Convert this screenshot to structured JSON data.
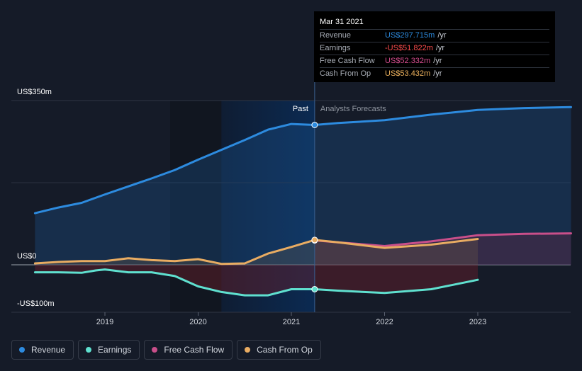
{
  "tooltip": {
    "date": "Mar 31 2021",
    "rows": [
      {
        "label": "Revenue",
        "value": "US$297.715m",
        "unit": "/yr",
        "color": "#2d8bdf"
      },
      {
        "label": "Earnings",
        "value": "-US$51.822m",
        "unit": "/yr",
        "color": "#ff4d4d"
      },
      {
        "label": "Free Cash Flow",
        "value": "US$52.332m",
        "unit": "/yr",
        "color": "#d64d8f"
      },
      {
        "label": "Cash From Op",
        "value": "US$53.432m",
        "unit": "/yr",
        "color": "#f0b45e"
      }
    ]
  },
  "legend": [
    {
      "label": "Revenue",
      "color": "#2d8bdf"
    },
    {
      "label": "Earnings",
      "color": "#5fe0cf"
    },
    {
      "label": "Free Cash Flow",
      "color": "#c94f8a"
    },
    {
      "label": "Cash From Op",
      "color": "#e9ac62"
    }
  ],
  "chart_data": {
    "type": "line",
    "ylabels": [
      "US$350m",
      "US$0",
      "-US$100m"
    ],
    "ylim": [
      -100,
      350
    ],
    "xlim": [
      2018.25,
      2024.0
    ],
    "xticks": [
      {
        "value": 2019,
        "label": "2019"
      },
      {
        "value": 2020,
        "label": "2020"
      },
      {
        "value": 2021,
        "label": "2021"
      },
      {
        "value": 2022,
        "label": "2022"
      },
      {
        "value": 2023,
        "label": "2023"
      }
    ],
    "past_label": "Past",
    "forecast_label": "Analysts Forecasts",
    "divider_x": 2021.25,
    "highlight_start": 2020.25,
    "series": [
      {
        "name": "Revenue",
        "color": "#2d8bdf",
        "x": [
          2018.25,
          2018.5,
          2018.75,
          2019.0,
          2019.25,
          2019.5,
          2019.75,
          2020.0,
          2020.25,
          2020.5,
          2020.75,
          2021.0,
          2021.25,
          2021.5,
          2022.0,
          2022.5,
          2023.0,
          2023.5,
          2024.0
        ],
        "y": [
          110,
          122,
          132,
          150,
          167,
          184,
          202,
          224,
          245,
          266,
          288,
          300,
          298,
          302,
          308,
          320,
          330,
          334,
          336
        ]
      },
      {
        "name": "Earnings",
        "color": "#5fe0cf",
        "x": [
          2018.25,
          2018.5,
          2018.75,
          2018.9,
          2019.0,
          2019.25,
          2019.5,
          2019.75,
          2020.0,
          2020.25,
          2020.5,
          2020.75,
          2021.0,
          2021.25,
          2021.5,
          2022.0,
          2022.5,
          2023.0
        ],
        "y": [
          -16,
          -16,
          -17,
          -12,
          -10,
          -16,
          -16,
          -24,
          -46,
          -58,
          -65,
          -65,
          -52,
          -52,
          -55,
          -60,
          -52,
          -32
        ]
      },
      {
        "name": "Free Cash Flow",
        "color": "#c94f8a",
        "x": [
          2021.25,
          2021.5,
          2022.0,
          2022.5,
          2023.0,
          2023.5,
          2024.0
        ],
        "y": [
          52,
          48,
          40,
          50,
          63,
          66,
          67
        ]
      },
      {
        "name": "Cash From Op",
        "color": "#e9ac62",
        "x": [
          2018.25,
          2018.5,
          2018.75,
          2019.0,
          2019.25,
          2019.5,
          2019.75,
          2020.0,
          2020.25,
          2020.5,
          2020.75,
          2021.0,
          2021.25,
          2021.5,
          2022.0,
          2022.5,
          2023.0
        ],
        "y": [
          3,
          6,
          8,
          8,
          14,
          10,
          8,
          12,
          2,
          3,
          24,
          38,
          53,
          48,
          36,
          43,
          55
        ]
      }
    ]
  }
}
